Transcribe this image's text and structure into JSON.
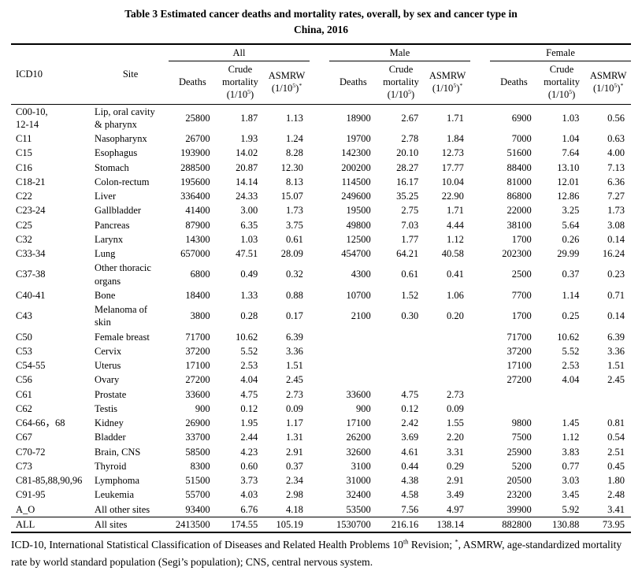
{
  "title": {
    "line1": "Table 3 Estimated cancer deaths and mortality rates, overall, by sex and cancer type in",
    "line2": "China, 2016"
  },
  "table": {
    "header": {
      "icd10": "ICD10",
      "site": "Site",
      "groups": [
        "All",
        "Male",
        "Female"
      ],
      "deaths": "Deaths",
      "crude_prefix": "Crude mortality (1/10",
      "asmrw_prefix": "ASMRW (1/10",
      "sup_five": "5",
      "close_paren": ")",
      "asterisk": "*"
    },
    "rows": [
      {
        "icd": "C00-10,\n12-14",
        "site": "Lip, oral cavity\n& pharynx",
        "values": [
          "25800",
          "1.87",
          "1.13",
          "18900",
          "2.67",
          "1.71",
          "6900",
          "1.03",
          "0.56"
        ]
      },
      {
        "icd": "C11",
        "site": "Nasopharynx",
        "values": [
          "26700",
          "1.93",
          "1.24",
          "19700",
          "2.78",
          "1.84",
          "7000",
          "1.04",
          "0.63"
        ]
      },
      {
        "icd": "C15",
        "site": "Esophagus",
        "values": [
          "193900",
          "14.02",
          "8.28",
          "142300",
          "20.10",
          "12.73",
          "51600",
          "7.64",
          "4.00"
        ]
      },
      {
        "icd": "C16",
        "site": "Stomach",
        "values": [
          "288500",
          "20.87",
          "12.30",
          "200200",
          "28.27",
          "17.77",
          "88400",
          "13.10",
          "7.13"
        ]
      },
      {
        "icd": "C18-21",
        "site": "Colon-rectum",
        "values": [
          "195600",
          "14.14",
          "8.13",
          "114500",
          "16.17",
          "10.04",
          "81000",
          "12.01",
          "6.36"
        ]
      },
      {
        "icd": "C22",
        "site": "Liver",
        "values": [
          "336400",
          "24.33",
          "15.07",
          "249600",
          "35.25",
          "22.90",
          "86800",
          "12.86",
          "7.27"
        ]
      },
      {
        "icd": "C23-24",
        "site": "Gallbladder",
        "values": [
          "41400",
          "3.00",
          "1.73",
          "19500",
          "2.75",
          "1.71",
          "22000",
          "3.25",
          "1.73"
        ]
      },
      {
        "icd": "C25",
        "site": "Pancreas",
        "values": [
          "87900",
          "6.35",
          "3.75",
          "49800",
          "7.03",
          "4.44",
          "38100",
          "5.64",
          "3.08"
        ]
      },
      {
        "icd": "C32",
        "site": "Larynx",
        "values": [
          "14300",
          "1.03",
          "0.61",
          "12500",
          "1.77",
          "1.12",
          "1700",
          "0.26",
          "0.14"
        ]
      },
      {
        "icd": "C33-34",
        "site": "Lung",
        "values": [
          "657000",
          "47.51",
          "28.09",
          "454700",
          "64.21",
          "40.58",
          "202300",
          "29.99",
          "16.24"
        ]
      },
      {
        "icd": "C37-38",
        "site": "Other thoracic\norgans",
        "values": [
          "6800",
          "0.49",
          "0.32",
          "4300",
          "0.61",
          "0.41",
          "2500",
          "0.37",
          "0.23"
        ]
      },
      {
        "icd": "C40-41",
        "site": "Bone",
        "values": [
          "18400",
          "1.33",
          "0.88",
          "10700",
          "1.52",
          "1.06",
          "7700",
          "1.14",
          "0.71"
        ]
      },
      {
        "icd": "C43",
        "site": "Melanoma of\nskin",
        "values": [
          "3800",
          "0.28",
          "0.17",
          "2100",
          "0.30",
          "0.20",
          "1700",
          "0.25",
          "0.14"
        ]
      },
      {
        "icd": "C50",
        "site": "Female breast",
        "values": [
          "71700",
          "10.62",
          "6.39",
          "",
          "",
          "",
          "71700",
          "10.62",
          "6.39"
        ]
      },
      {
        "icd": "C53",
        "site": "Cervix",
        "values": [
          "37200",
          "5.52",
          "3.36",
          "",
          "",
          "",
          "37200",
          "5.52",
          "3.36"
        ]
      },
      {
        "icd": "C54-55",
        "site": "Uterus",
        "values": [
          "17100",
          "2.53",
          "1.51",
          "",
          "",
          "",
          "17100",
          "2.53",
          "1.51"
        ]
      },
      {
        "icd": "C56",
        "site": "Ovary",
        "values": [
          "27200",
          "4.04",
          "2.45",
          "",
          "",
          "",
          "27200",
          "4.04",
          "2.45"
        ]
      },
      {
        "icd": "C61",
        "site": "Prostate",
        "values": [
          "33600",
          "4.75",
          "2.73",
          "33600",
          "4.75",
          "2.73",
          "",
          "",
          ""
        ]
      },
      {
        "icd": "C62",
        "site": "Testis",
        "values": [
          "900",
          "0.12",
          "0.09",
          "900",
          "0.12",
          "0.09",
          "",
          "",
          ""
        ]
      },
      {
        "icd": "C64-66，68",
        "site": "Kidney",
        "values": [
          "26900",
          "1.95",
          "1.17",
          "17100",
          "2.42",
          "1.55",
          "9800",
          "1.45",
          "0.81"
        ]
      },
      {
        "icd": "C67",
        "site": "Bladder",
        "values": [
          "33700",
          "2.44",
          "1.31",
          "26200",
          "3.69",
          "2.20",
          "7500",
          "1.12",
          "0.54"
        ]
      },
      {
        "icd": "C70-72",
        "site": "Brain, CNS",
        "values": [
          "58500",
          "4.23",
          "2.91",
          "32600",
          "4.61",
          "3.31",
          "25900",
          "3.83",
          "2.51"
        ]
      },
      {
        "icd": "C73",
        "site": "Thyroid",
        "values": [
          "8300",
          "0.60",
          "0.37",
          "3100",
          "0.44",
          "0.29",
          "5200",
          "0.77",
          "0.45"
        ]
      },
      {
        "icd": "C81-85,88,90,96",
        "site": "Lymphoma",
        "values": [
          "51500",
          "3.73",
          "2.34",
          "31000",
          "4.38",
          "2.91",
          "20500",
          "3.03",
          "1.80"
        ]
      },
      {
        "icd": "C91-95",
        "site": "Leukemia",
        "values": [
          "55700",
          "4.03",
          "2.98",
          "32400",
          "4.58",
          "3.49",
          "23200",
          "3.45",
          "2.48"
        ]
      },
      {
        "icd": "A_O",
        "site": "All other sites",
        "values": [
          "93400",
          "6.76",
          "4.18",
          "53500",
          "7.56",
          "4.97",
          "39900",
          "5.92",
          "3.41"
        ]
      },
      {
        "icd": "ALL",
        "site": "All sites",
        "values": [
          "2413500",
          "174.55",
          "105.19",
          "1530700",
          "216.16",
          "138.14",
          "882800",
          "130.88",
          "73.95"
        ]
      }
    ]
  },
  "footnote": {
    "part1": "ICD-10, International Statistical Classification of Diseases and Related Health Problems 10",
    "sup_th": "th",
    "part2": " Revision; ",
    "sup_star": "*",
    "part3": ", ASMRW, age-standardized mortality rate by world standard population (Segi’s population); CNS, central nervous system."
  }
}
